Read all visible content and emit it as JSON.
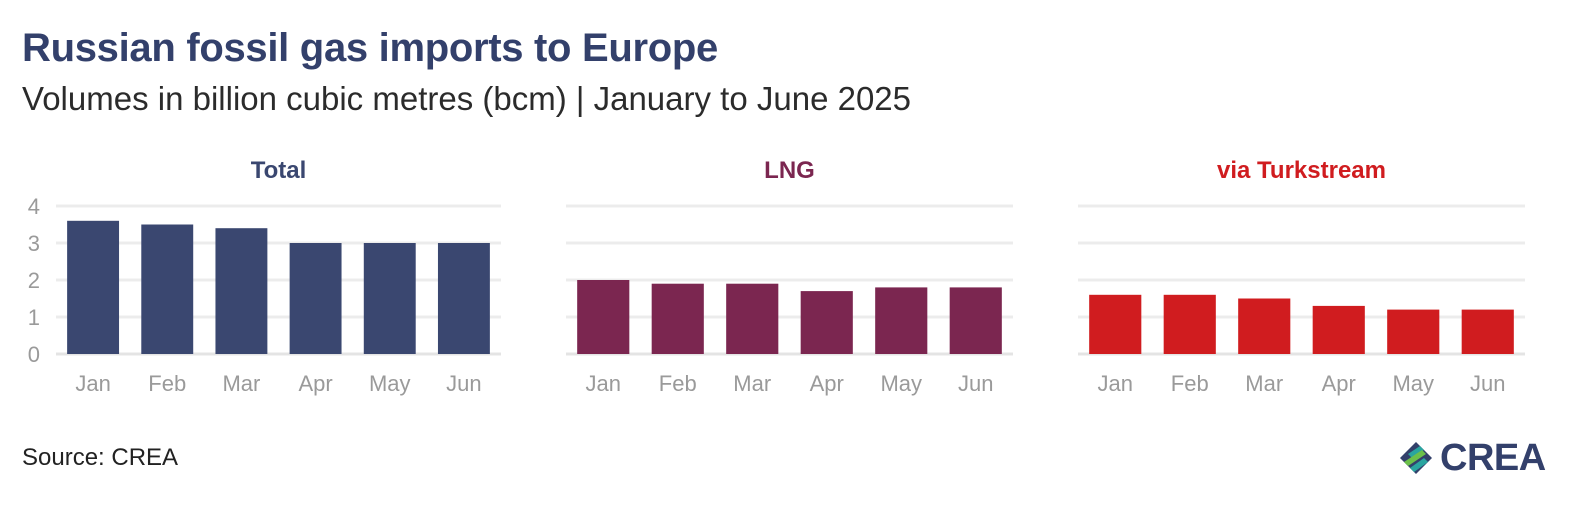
{
  "title": "Russian fossil gas imports to Europe",
  "subtitle": "Volumes in billion cubic metres (bcm) | January to June 2025",
  "source": "Source: CREA",
  "logo": {
    "text": "CREA",
    "icon": "crea-logo-icon"
  },
  "chart_data": [
    {
      "type": "bar",
      "title": "Total",
      "color": "#3a4770",
      "categories": [
        "Jan",
        "Feb",
        "Mar",
        "Apr",
        "May",
        "Jun"
      ],
      "values": [
        3.6,
        3.5,
        3.4,
        3.0,
        3.0,
        3.0
      ],
      "ylim": [
        0,
        4
      ],
      "yticks": [
        0,
        1,
        2,
        3,
        4
      ],
      "grid": true
    },
    {
      "type": "bar",
      "title": "LNG",
      "color": "#7b2650",
      "categories": [
        "Jan",
        "Feb",
        "Mar",
        "Apr",
        "May",
        "Jun"
      ],
      "values": [
        2.0,
        1.9,
        1.9,
        1.7,
        1.8,
        1.8
      ],
      "ylim": [
        0,
        4
      ],
      "grid": true
    },
    {
      "type": "bar",
      "title": "via Turkstream",
      "color": "#d01c1f",
      "categories": [
        "Jan",
        "Feb",
        "Mar",
        "Apr",
        "May",
        "Jun"
      ],
      "values": [
        1.6,
        1.6,
        1.5,
        1.3,
        1.2,
        1.2
      ],
      "ylim": [
        0,
        4
      ],
      "grid": true
    }
  ]
}
